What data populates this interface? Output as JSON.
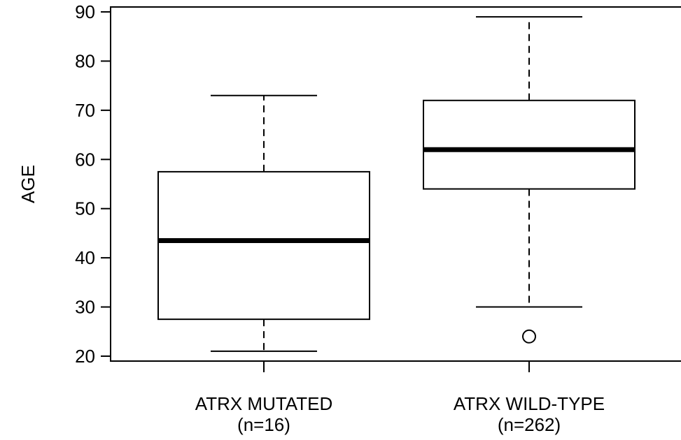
{
  "chart_data": {
    "type": "boxplot",
    "ylabel": "AGE",
    "xlabel": "",
    "ylim": [
      19,
      91
    ],
    "yticks": [
      20,
      30,
      40,
      50,
      60,
      70,
      80,
      90
    ],
    "groups": [
      {
        "label": "ATRX MUTATED",
        "sublabel": "(n=16)",
        "min": 21,
        "q1": 27.5,
        "median": 43.5,
        "q3": 57.5,
        "max": 73,
        "outliers": []
      },
      {
        "label": "ATRX WILD-TYPE",
        "sublabel": "(n=262)",
        "min": 30,
        "q1": 54,
        "median": 62,
        "q3": 72,
        "max": 89,
        "outliers": [
          24
        ]
      }
    ]
  }
}
